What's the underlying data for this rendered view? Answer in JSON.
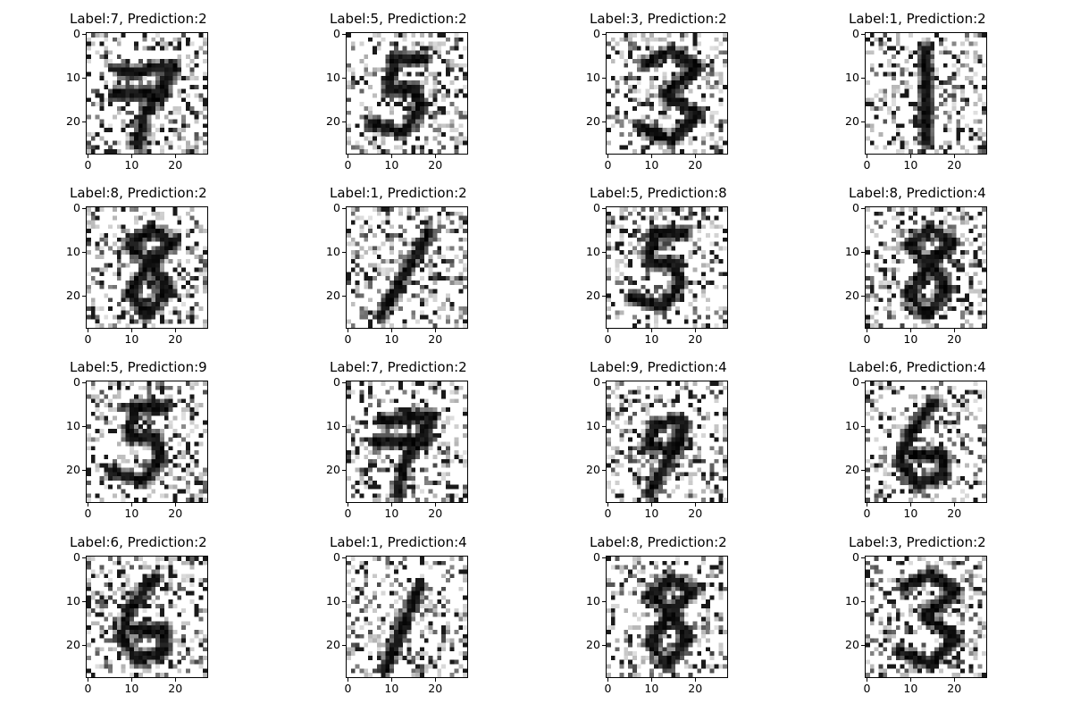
{
  "chart_data": [
    {
      "type": "heatmap",
      "title": "Label:7, Prediction:2",
      "label": 7,
      "prediction": 2,
      "digit": "7",
      "colormap": "gray_r",
      "xlim": [
        0,
        27
      ],
      "ylim": [
        27,
        0
      ],
      "xticks": [
        "0",
        "10",
        "20"
      ],
      "yticks": [
        "0",
        "10",
        "20"
      ]
    },
    {
      "type": "heatmap",
      "title": "Label:5, Prediction:2",
      "label": 5,
      "prediction": 2,
      "digit": "5",
      "colormap": "gray_r",
      "xlim": [
        0,
        27
      ],
      "ylim": [
        27,
        0
      ],
      "xticks": [
        "0",
        "10",
        "20"
      ],
      "yticks": [
        "0",
        "10",
        "20"
      ]
    },
    {
      "type": "heatmap",
      "title": "Label:3, Prediction:2",
      "label": 3,
      "prediction": 2,
      "digit": "3",
      "colormap": "gray_r",
      "xlim": [
        0,
        27
      ],
      "ylim": [
        27,
        0
      ],
      "xticks": [
        "0",
        "10",
        "20"
      ],
      "yticks": [
        "0",
        "10",
        "20"
      ]
    },
    {
      "type": "heatmap",
      "title": "Label:1, Prediction:2",
      "label": 1,
      "prediction": 2,
      "digit": "1",
      "colormap": "gray_r",
      "xlim": [
        0,
        27
      ],
      "ylim": [
        27,
        0
      ],
      "xticks": [
        "0",
        "10",
        "20"
      ],
      "yticks": [
        "0",
        "10",
        "20"
      ]
    },
    {
      "type": "heatmap",
      "title": "Label:8, Prediction:2",
      "label": 8,
      "prediction": 2,
      "digit": "8",
      "colormap": "gray_r",
      "xlim": [
        0,
        27
      ],
      "ylim": [
        27,
        0
      ],
      "xticks": [
        "0",
        "10",
        "20"
      ],
      "yticks": [
        "0",
        "10",
        "20"
      ]
    },
    {
      "type": "heatmap",
      "title": "Label:1, Prediction:2",
      "label": 1,
      "prediction": 2,
      "digit": "1",
      "colormap": "gray_r",
      "xlim": [
        0,
        27
      ],
      "ylim": [
        27,
        0
      ],
      "xticks": [
        "0",
        "10",
        "20"
      ],
      "yticks": [
        "0",
        "10",
        "20"
      ]
    },
    {
      "type": "heatmap",
      "title": "Label:5, Prediction:8",
      "label": 5,
      "prediction": 8,
      "digit": "5",
      "colormap": "gray_r",
      "xlim": [
        0,
        27
      ],
      "ylim": [
        27,
        0
      ],
      "xticks": [
        "0",
        "10",
        "20"
      ],
      "yticks": [
        "0",
        "10",
        "20"
      ]
    },
    {
      "type": "heatmap",
      "title": "Label:8, Prediction:4",
      "label": 8,
      "prediction": 4,
      "digit": "8",
      "colormap": "gray_r",
      "xlim": [
        0,
        27
      ],
      "ylim": [
        27,
        0
      ],
      "xticks": [
        "0",
        "10",
        "20"
      ],
      "yticks": [
        "0",
        "10",
        "20"
      ]
    },
    {
      "type": "heatmap",
      "title": "Label:5, Prediction:9",
      "label": 5,
      "prediction": 9,
      "digit": "5",
      "colormap": "gray_r",
      "xlim": [
        0,
        27
      ],
      "ylim": [
        27,
        0
      ],
      "xticks": [
        "0",
        "10",
        "20"
      ],
      "yticks": [
        "0",
        "10",
        "20"
      ]
    },
    {
      "type": "heatmap",
      "title": "Label:7, Prediction:2",
      "label": 7,
      "prediction": 2,
      "digit": "7",
      "colormap": "gray_r",
      "xlim": [
        0,
        27
      ],
      "ylim": [
        27,
        0
      ],
      "xticks": [
        "0",
        "10",
        "20"
      ],
      "yticks": [
        "0",
        "10",
        "20"
      ]
    },
    {
      "type": "heatmap",
      "title": "Label:9, Prediction:4",
      "label": 9,
      "prediction": 4,
      "digit": "9",
      "colormap": "gray_r",
      "xlim": [
        0,
        27
      ],
      "ylim": [
        27,
        0
      ],
      "xticks": [
        "0",
        "10",
        "20"
      ],
      "yticks": [
        "0",
        "10",
        "20"
      ]
    },
    {
      "type": "heatmap",
      "title": "Label:6, Prediction:4",
      "label": 6,
      "prediction": 4,
      "digit": "6",
      "colormap": "gray_r",
      "xlim": [
        0,
        27
      ],
      "ylim": [
        27,
        0
      ],
      "xticks": [
        "0",
        "10",
        "20"
      ],
      "yticks": [
        "0",
        "10",
        "20"
      ]
    },
    {
      "type": "heatmap",
      "title": "Label:6, Prediction:2",
      "label": 6,
      "prediction": 2,
      "digit": "6",
      "colormap": "gray_r",
      "xlim": [
        0,
        27
      ],
      "ylim": [
        27,
        0
      ],
      "xticks": [
        "0",
        "10",
        "20"
      ],
      "yticks": [
        "0",
        "10",
        "20"
      ]
    },
    {
      "type": "heatmap",
      "title": "Label:1, Prediction:4",
      "label": 1,
      "prediction": 4,
      "digit": "1",
      "colormap": "gray_r",
      "xlim": [
        0,
        27
      ],
      "ylim": [
        27,
        0
      ],
      "xticks": [
        "0",
        "10",
        "20"
      ],
      "yticks": [
        "0",
        "10",
        "20"
      ]
    },
    {
      "type": "heatmap",
      "title": "Label:8, Prediction:2",
      "label": 8,
      "prediction": 2,
      "digit": "8",
      "colormap": "gray_r",
      "xlim": [
        0,
        27
      ],
      "ylim": [
        27,
        0
      ],
      "xticks": [
        "0",
        "10",
        "20"
      ],
      "yticks": [
        "0",
        "10",
        "20"
      ]
    },
    {
      "type": "heatmap",
      "title": "Label:3, Prediction:2",
      "label": 3,
      "prediction": 2,
      "digit": "3",
      "colormap": "gray_r",
      "xlim": [
        0,
        27
      ],
      "ylim": [
        27,
        0
      ],
      "xticks": [
        "0",
        "10",
        "20"
      ],
      "yticks": [
        "0",
        "10",
        "20"
      ]
    }
  ]
}
